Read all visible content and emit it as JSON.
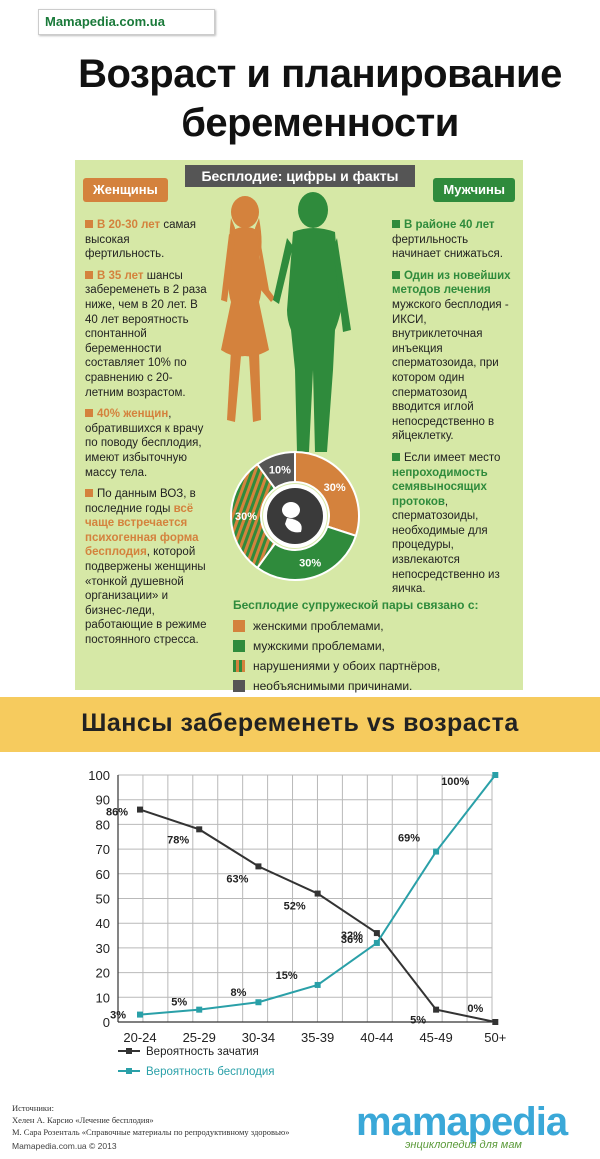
{
  "site_badge": "Mamapedia.com.ua",
  "title_line1": "Возраст и планирование",
  "title_line2": "беременности",
  "infographic": {
    "heading": "Бесплодие: цифры и факты",
    "women_tab": "Женщины",
    "men_tab": "Мужчины",
    "women_facts": [
      {
        "lead": "В 20-30 лет",
        "text": "самая высокая фертильность."
      },
      {
        "lead": "В 35 лет",
        "text": "шансы забеременеть в 2 раза ниже, чем в 20 лет. В 40 лет вероятность спонтанной беременности составляет 10% по сравнению с 20-летним возрастом."
      },
      {
        "lead": "40% женщин",
        "text": ", обратившихся к врачу по поводу бесплодия, имеют избыточную массу тела."
      },
      {
        "lead": "По данным ВОЗ, в последние годы",
        "highlight": "всё чаще встречается психогенная форма бесплодия",
        "text": ", которой подвержены женщины «тонкой душевной организации» и бизнес-леди, работающие в режиме постоянного стресса."
      }
    ],
    "men_facts": [
      {
        "lead": "В районе 40 лет",
        "text": "фертильность начинает снижаться."
      },
      {
        "lead": "Один из новейших методов лечения",
        "text": "мужского бесплодия - ИКСИ, внутриклеточная инъекция сперматозоида, при котором один сперматозоид вводится иглой непосредственно в яйцеклетку."
      },
      {
        "lead": "Если имеет место",
        "highlight": "непроходимость семявыносящих протоков",
        "text": ", сперматозоиды, необходимые для процедуры, извлекаются непосредственно из яичка."
      }
    ],
    "pie": [
      {
        "label": "30%",
        "value": 30,
        "color": "#d4823d"
      },
      {
        "label": "30%",
        "value": 30,
        "color": "#2f8b3c"
      },
      {
        "label": "30%",
        "value": 30,
        "color": "#8a7a2a"
      },
      {
        "label": "10%",
        "value": 10,
        "color": "#555555"
      }
    ],
    "legend_title": "Бесплодие супружеской пары связано с:",
    "legend": [
      {
        "label": "женскими проблемами,",
        "swatch": "orange"
      },
      {
        "label": "мужскими проблемами,",
        "swatch": "green"
      },
      {
        "label": "нарушениями у обоих партнёров,",
        "swatch": "striped"
      },
      {
        "label": "необъяснимыми причинами.",
        "swatch": "gray"
      }
    ]
  },
  "band_title": "Шансы забеременеть vs возраста",
  "chart_data": {
    "type": "line",
    "categories": [
      "20-24",
      "25-29",
      "30-34",
      "35-39",
      "40-44",
      "45-49",
      "50+"
    ],
    "ylim": [
      0,
      100
    ],
    "yticks": [
      0,
      10,
      20,
      30,
      40,
      50,
      60,
      70,
      80,
      90,
      100
    ],
    "series": [
      {
        "name": "Вероятность зачатия",
        "color": "#333333",
        "values": [
          86,
          78,
          63,
          52,
          36,
          5,
          0
        ],
        "labels": [
          "86%",
          "78%",
          "63%",
          "52%",
          "36%",
          "5%",
          "0%"
        ]
      },
      {
        "name": "Вероятность бесплодия",
        "color": "#2aa0a8",
        "values": [
          3,
          5,
          8,
          15,
          32,
          69,
          100
        ],
        "labels": [
          "3%",
          "5%",
          "8%",
          "15%",
          "32%",
          "69%",
          "100%"
        ]
      }
    ],
    "grid": true
  },
  "sources": {
    "title": "Источники:",
    "line1": "Хелен А. Карсио «Лечение бесплодия»",
    "line2": "М. Сара Розенталь «Справочные материалы по репродуктивному здоровью»"
  },
  "footer": "Mamapedia.com.ua © 2013",
  "logo": "mamapedia",
  "logo_sub": "энциклопедия для мам"
}
